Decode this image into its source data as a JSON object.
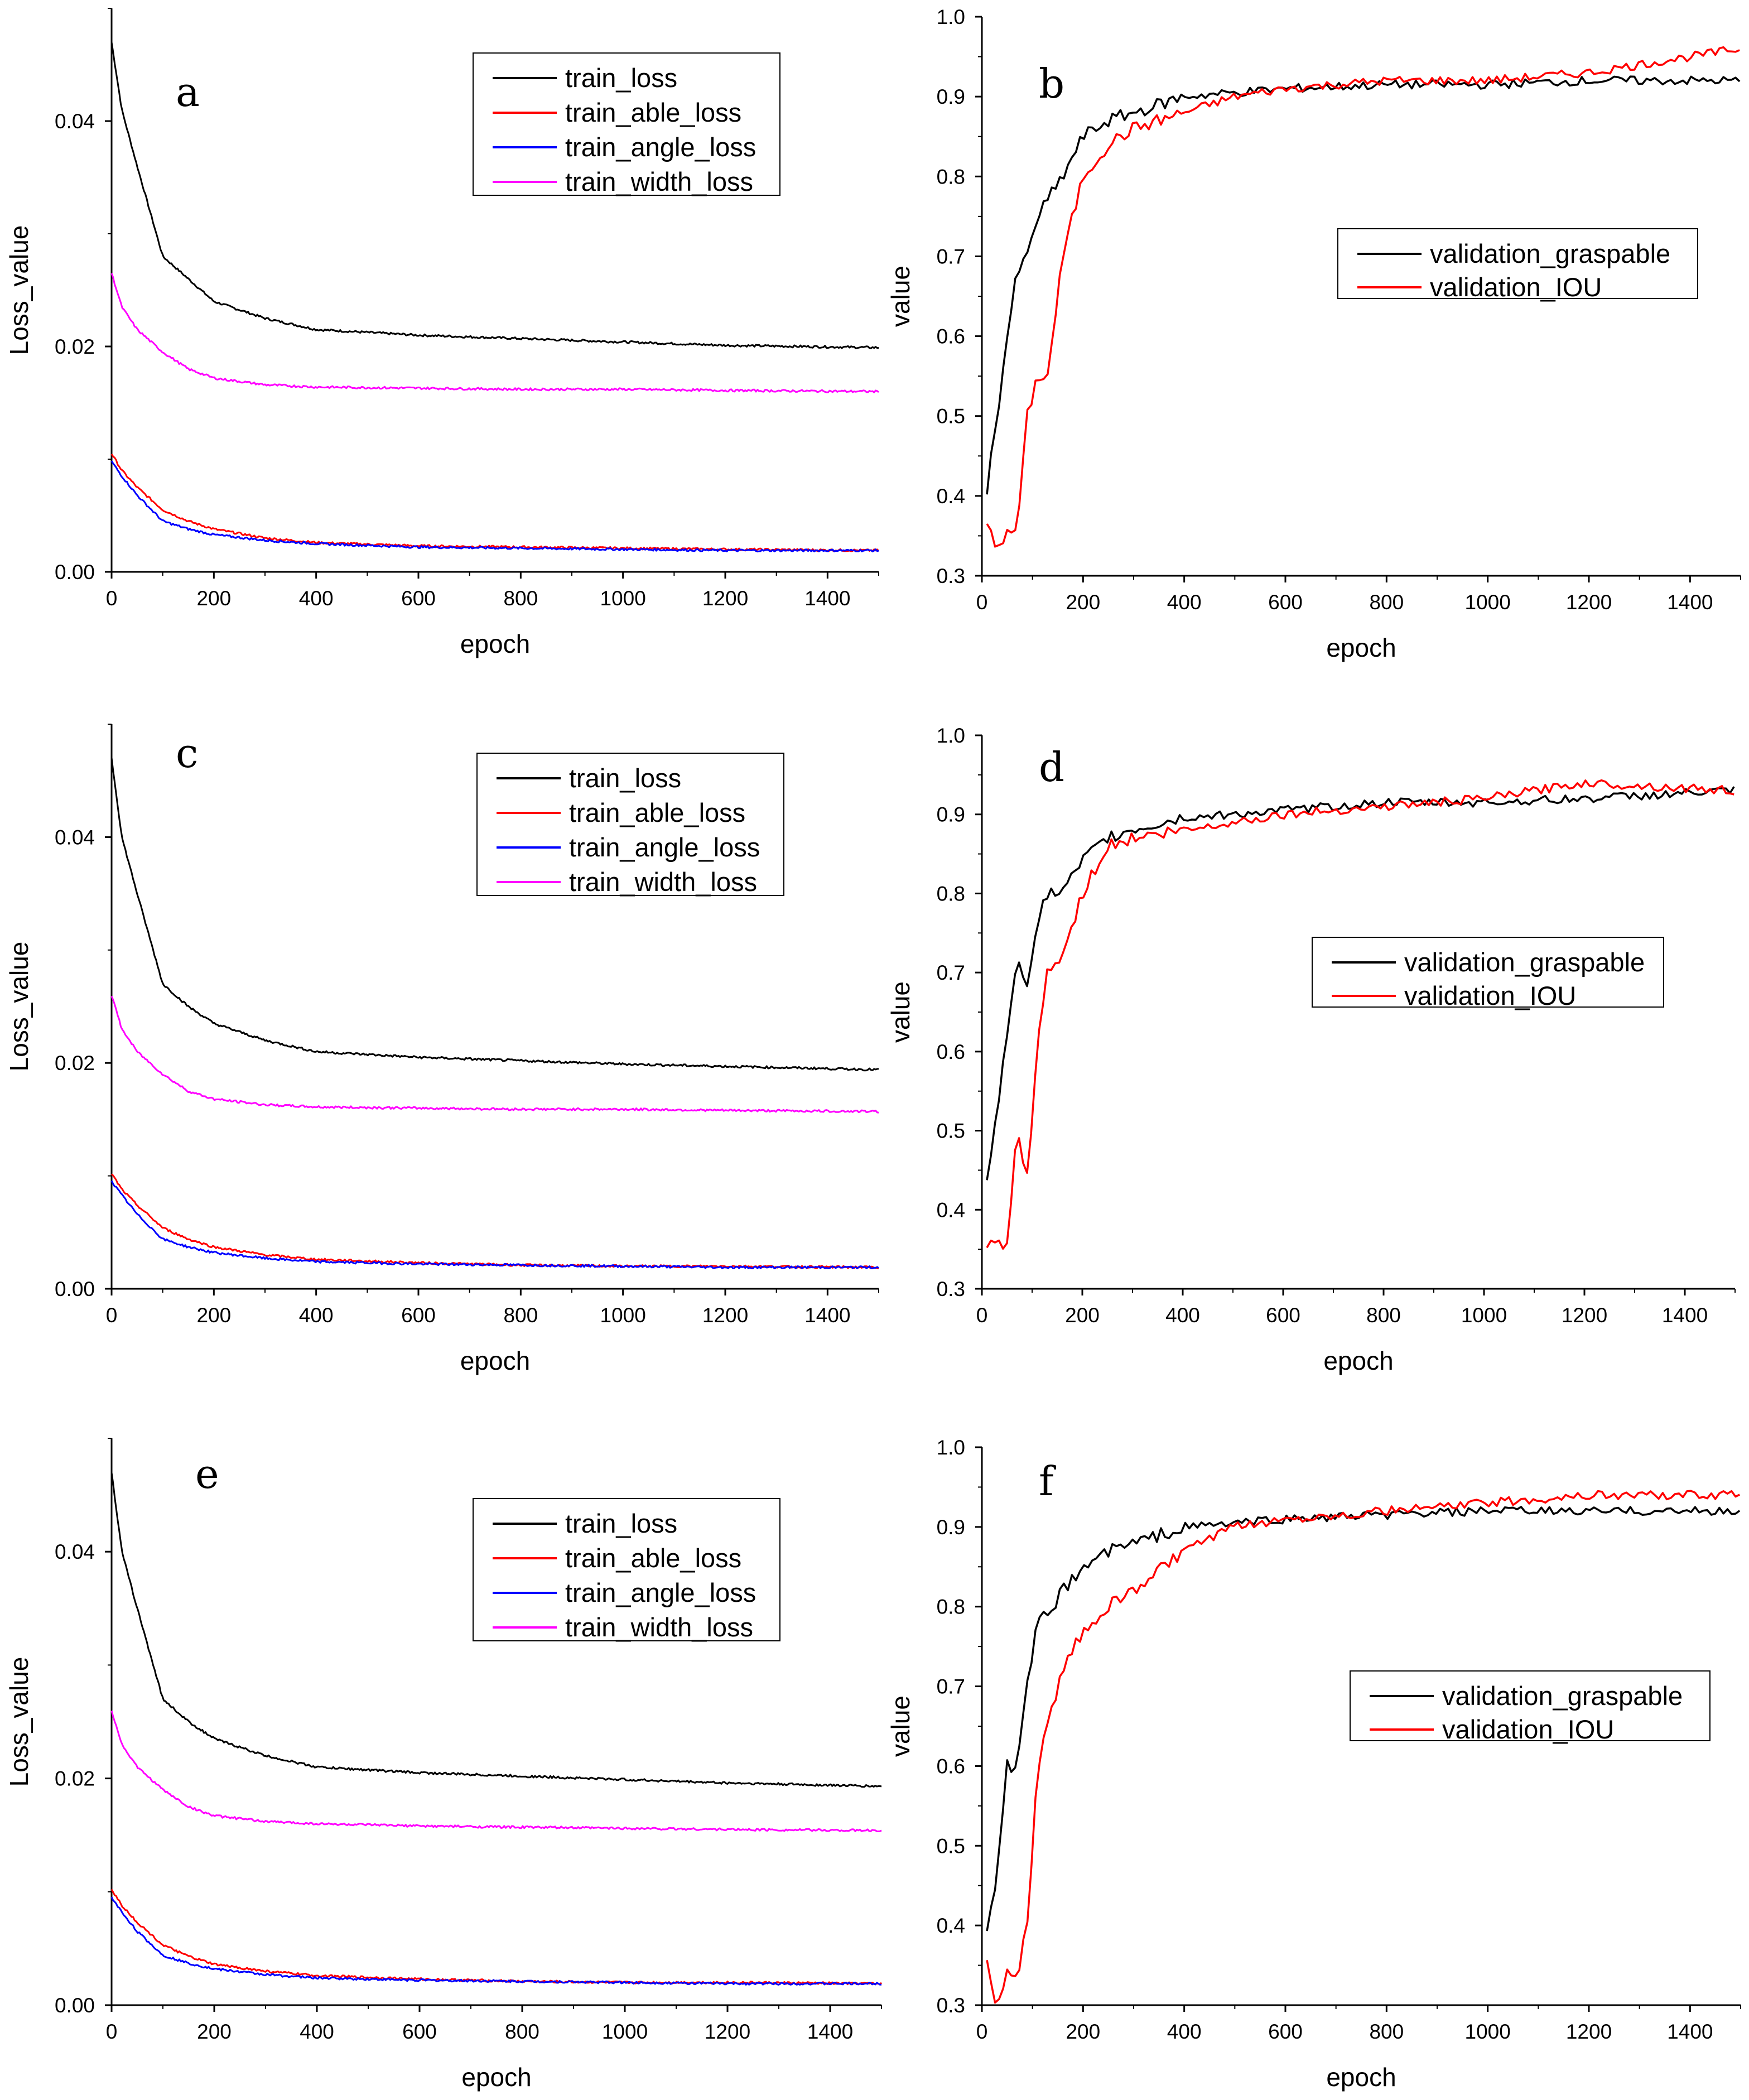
{
  "chart_data": [
    {
      "type": "line",
      "panel_label": "a",
      "xlabel": "epoch",
      "ylabel": "Loss_value",
      "xlim": [
        0,
        1500
      ],
      "ylim": [
        0,
        0.05
      ],
      "xticks": [
        0,
        200,
        400,
        600,
        800,
        1000,
        1200,
        1400
      ],
      "yticks": [
        0.0,
        0.02,
        0.04
      ],
      "ytick_labels": [
        "0.00",
        "0.02",
        "0.04"
      ],
      "legend": [
        "train_loss",
        "train_able_loss",
        "train_angle_loss",
        "train_width_loss"
      ],
      "series": [
        {
          "name": "train_loss",
          "color": "#000000",
          "x": [
            0,
            20,
            50,
            100,
            150,
            200,
            300,
            400,
            600,
            800,
            1000,
            1200,
            1500
          ],
          "values": [
            0.047,
            0.041,
            0.036,
            0.028,
            0.026,
            0.024,
            0.0225,
            0.0215,
            0.021,
            0.0207,
            0.0204,
            0.0201,
            0.0199
          ]
        },
        {
          "name": "train_able_loss",
          "color": "#ff0000",
          "x": [
            0,
            20,
            50,
            100,
            150,
            200,
            300,
            400,
            600,
            800,
            1000,
            1200,
            1500
          ],
          "values": [
            0.0105,
            0.009,
            0.0075,
            0.0055,
            0.0045,
            0.0038,
            0.003,
            0.0026,
            0.0023,
            0.0022,
            0.0021,
            0.002,
            0.0019
          ]
        },
        {
          "name": "train_angle_loss",
          "color": "#0000ff",
          "x": [
            0,
            20,
            50,
            100,
            150,
            200,
            300,
            400,
            600,
            800,
            1000,
            1200,
            1500
          ],
          "values": [
            0.0098,
            0.0085,
            0.0068,
            0.0045,
            0.0038,
            0.0033,
            0.0028,
            0.0025,
            0.0022,
            0.0021,
            0.002,
            0.0019,
            0.0019
          ]
        },
        {
          "name": "train_width_loss",
          "color": "#ff00ff",
          "x": [
            0,
            20,
            50,
            100,
            150,
            200,
            300,
            400,
            600,
            800,
            1000,
            1200,
            1500
          ],
          "values": [
            0.0265,
            0.0235,
            0.0215,
            0.0195,
            0.018,
            0.0172,
            0.0166,
            0.0164,
            0.0163,
            0.0162,
            0.0162,
            0.0161,
            0.016
          ]
        }
      ]
    },
    {
      "type": "line",
      "panel_label": "b",
      "xlabel": "epoch",
      "ylabel": "value",
      "xlim": [
        0,
        1500
      ],
      "ylim": [
        0.3,
        1.0
      ],
      "xticks": [
        0,
        200,
        400,
        600,
        800,
        1000,
        1200,
        1400
      ],
      "yticks": [
        0.3,
        0.4,
        0.5,
        0.6,
        0.7,
        0.8,
        0.9,
        1.0
      ],
      "ytick_labels": [
        "0.3",
        "0.4",
        "0.5",
        "0.6",
        "0.7",
        "0.8",
        "0.9",
        "1.0"
      ],
      "legend": [
        "validation_graspable",
        "validation_IOU"
      ],
      "series": [
        {
          "name": "validation_graspable",
          "color": "#000000",
          "x": [
            10,
            30,
            50,
            70,
            90,
            110,
            130,
            160,
            200,
            250,
            300,
            400,
            500,
            600,
            800,
            1000,
            1200,
            1500
          ],
          "values": [
            0.41,
            0.5,
            0.6,
            0.68,
            0.7,
            0.75,
            0.77,
            0.8,
            0.85,
            0.87,
            0.88,
            0.9,
            0.905,
            0.91,
            0.915,
            0.915,
            0.92,
            0.92
          ]
        },
        {
          "name": "validation_IOU",
          "color": "#ff0000",
          "x": [
            10,
            30,
            50,
            70,
            90,
            110,
            130,
            160,
            200,
            250,
            300,
            400,
            500,
            600,
            800,
            1000,
            1200,
            1500
          ],
          "values": [
            0.36,
            0.34,
            0.35,
            0.36,
            0.5,
            0.55,
            0.55,
            0.7,
            0.8,
            0.84,
            0.86,
            0.88,
            0.9,
            0.91,
            0.92,
            0.92,
            0.93,
            0.96
          ]
        }
      ]
    },
    {
      "type": "line",
      "panel_label": "c",
      "xlabel": "epoch",
      "ylabel": "Loss_value",
      "xlim": [
        0,
        1500
      ],
      "ylim": [
        0,
        0.05
      ],
      "xticks": [
        0,
        200,
        400,
        600,
        800,
        1000,
        1200,
        1400
      ],
      "yticks": [
        0.0,
        0.02,
        0.04
      ],
      "ytick_labels": [
        "0.00",
        "0.02",
        "0.04"
      ],
      "legend": [
        "train_loss",
        "train_able_loss",
        "train_angle_loss",
        "train_width_loss"
      ],
      "series": [
        {
          "name": "train_loss",
          "color": "#000000",
          "x": [
            0,
            20,
            50,
            100,
            150,
            200,
            300,
            400,
            600,
            800,
            1000,
            1200,
            1500
          ],
          "values": [
            0.047,
            0.04,
            0.035,
            0.027,
            0.025,
            0.0235,
            0.022,
            0.021,
            0.0205,
            0.0202,
            0.0199,
            0.0197,
            0.0194
          ]
        },
        {
          "name": "train_able_loss",
          "color": "#ff0000",
          "x": [
            0,
            20,
            50,
            100,
            150,
            200,
            300,
            400,
            600,
            800,
            1000,
            1200,
            1500
          ],
          "values": [
            0.0102,
            0.0088,
            0.0074,
            0.0054,
            0.0044,
            0.0037,
            0.003,
            0.0026,
            0.0023,
            0.0021,
            0.002,
            0.002,
            0.0019
          ]
        },
        {
          "name": "train_angle_loss",
          "color": "#0000ff",
          "x": [
            0,
            20,
            50,
            100,
            150,
            200,
            300,
            400,
            600,
            800,
            1000,
            1200,
            1500
          ],
          "values": [
            0.0095,
            0.0083,
            0.0066,
            0.0044,
            0.0037,
            0.0032,
            0.0027,
            0.0024,
            0.0022,
            0.0021,
            0.002,
            0.0019,
            0.0019
          ]
        },
        {
          "name": "train_width_loss",
          "color": "#ff00ff",
          "x": [
            0,
            20,
            50,
            100,
            150,
            200,
            300,
            400,
            600,
            800,
            1000,
            1200,
            1500
          ],
          "values": [
            0.026,
            0.023,
            0.021,
            0.019,
            0.0175,
            0.0168,
            0.0163,
            0.0161,
            0.016,
            0.0159,
            0.0159,
            0.0158,
            0.0157
          ]
        }
      ]
    },
    {
      "type": "line",
      "panel_label": "d",
      "xlabel": "epoch",
      "ylabel": "value",
      "xlim": [
        0,
        1500
      ],
      "ylim": [
        0.3,
        1.0
      ],
      "xticks": [
        0,
        200,
        400,
        600,
        800,
        1000,
        1200,
        1400
      ],
      "yticks": [
        0.3,
        0.4,
        0.5,
        0.6,
        0.7,
        0.8,
        0.9,
        1.0
      ],
      "ytick_labels": [
        "0.3",
        "0.4",
        "0.5",
        "0.6",
        "0.7",
        "0.8",
        "0.9",
        "1.0"
      ],
      "legend": [
        "validation_graspable",
        "validation_IOU"
      ],
      "series": [
        {
          "name": "validation_graspable",
          "color": "#000000",
          "x": [
            10,
            30,
            50,
            70,
            90,
            110,
            130,
            160,
            200,
            250,
            300,
            400,
            500,
            600,
            800,
            1000,
            1200,
            1500
          ],
          "values": [
            0.44,
            0.52,
            0.62,
            0.72,
            0.69,
            0.76,
            0.8,
            0.8,
            0.84,
            0.87,
            0.88,
            0.895,
            0.9,
            0.905,
            0.915,
            0.915,
            0.92,
            0.93
          ]
        },
        {
          "name": "validation_IOU",
          "color": "#ff0000",
          "x": [
            10,
            30,
            50,
            70,
            90,
            110,
            130,
            160,
            200,
            250,
            300,
            400,
            500,
            600,
            800,
            1000,
            1200,
            1500
          ],
          "values": [
            0.35,
            0.36,
            0.35,
            0.5,
            0.44,
            0.6,
            0.7,
            0.72,
            0.8,
            0.86,
            0.87,
            0.88,
            0.89,
            0.9,
            0.91,
            0.92,
            0.94,
            0.93
          ]
        }
      ]
    },
    {
      "type": "line",
      "panel_label": "e",
      "xlabel": "epoch",
      "ylabel": "Loss_value",
      "xlim": [
        0,
        1500
      ],
      "ylim": [
        0,
        0.05
      ],
      "xticks": [
        0,
        200,
        400,
        600,
        800,
        1000,
        1200,
        1400
      ],
      "yticks": [
        0.0,
        0.02,
        0.04
      ],
      "ytick_labels": [
        "0.00",
        "0.02",
        "0.04"
      ],
      "legend": [
        "train_loss",
        "train_able_loss",
        "train_angle_loss",
        "train_width_loss"
      ],
      "series": [
        {
          "name": "train_loss",
          "color": "#000000",
          "x": [
            0,
            20,
            50,
            100,
            150,
            200,
            300,
            400,
            600,
            800,
            1000,
            1200,
            1500
          ],
          "values": [
            0.047,
            0.04,
            0.035,
            0.027,
            0.025,
            0.0235,
            0.022,
            0.021,
            0.0205,
            0.0202,
            0.0199,
            0.0196,
            0.0193
          ]
        },
        {
          "name": "train_able_loss",
          "color": "#ff0000",
          "x": [
            0,
            20,
            50,
            100,
            150,
            200,
            300,
            400,
            600,
            800,
            1000,
            1200,
            1500
          ],
          "values": [
            0.0102,
            0.0088,
            0.0073,
            0.0053,
            0.0043,
            0.0036,
            0.003,
            0.0026,
            0.0023,
            0.0021,
            0.002,
            0.002,
            0.0019
          ]
        },
        {
          "name": "train_angle_loss",
          "color": "#0000ff",
          "x": [
            0,
            20,
            50,
            100,
            150,
            200,
            300,
            400,
            600,
            800,
            1000,
            1200,
            1500
          ],
          "values": [
            0.0095,
            0.0082,
            0.0065,
            0.0044,
            0.0037,
            0.0032,
            0.0027,
            0.0024,
            0.0022,
            0.0021,
            0.002,
            0.0019,
            0.0019
          ]
        },
        {
          "name": "train_width_loss",
          "color": "#ff00ff",
          "x": [
            0,
            20,
            50,
            100,
            150,
            200,
            300,
            400,
            600,
            800,
            1000,
            1200,
            1500
          ],
          "values": [
            0.026,
            0.023,
            0.021,
            0.019,
            0.0175,
            0.0167,
            0.0162,
            0.016,
            0.0158,
            0.0157,
            0.0156,
            0.0155,
            0.0154
          ]
        }
      ]
    },
    {
      "type": "line",
      "panel_label": "f",
      "xlabel": "epoch",
      "ylabel": "value",
      "xlim": [
        0,
        1500
      ],
      "ylim": [
        0.3,
        1.0
      ],
      "xticks": [
        0,
        200,
        400,
        600,
        800,
        1000,
        1200,
        1400
      ],
      "yticks": [
        0.3,
        0.4,
        0.5,
        0.6,
        0.7,
        0.8,
        0.9,
        1.0
      ],
      "ytick_labels": [
        "0.3",
        "0.4",
        "0.5",
        "0.6",
        "0.7",
        "0.8",
        "0.9",
        "1.0"
      ],
      "legend": [
        "validation_graspable",
        "validation_IOU"
      ],
      "series": [
        {
          "name": "validation_graspable",
          "color": "#000000",
          "x": [
            10,
            30,
            50,
            70,
            90,
            110,
            130,
            160,
            200,
            250,
            300,
            400,
            500,
            600,
            800,
            1000,
            1200,
            1500
          ],
          "values": [
            0.4,
            0.46,
            0.6,
            0.6,
            0.7,
            0.78,
            0.79,
            0.82,
            0.85,
            0.87,
            0.88,
            0.9,
            0.905,
            0.91,
            0.915,
            0.92,
            0.92,
            0.92
          ]
        },
        {
          "name": "validation_IOU",
          "color": "#ff0000",
          "x": [
            10,
            30,
            50,
            70,
            90,
            110,
            130,
            160,
            200,
            250,
            300,
            400,
            500,
            600,
            800,
            1000,
            1200,
            1500
          ],
          "values": [
            0.35,
            0.3,
            0.34,
            0.34,
            0.4,
            0.6,
            0.65,
            0.72,
            0.77,
            0.8,
            0.82,
            0.87,
            0.9,
            0.91,
            0.92,
            0.93,
            0.94,
            0.94
          ]
        }
      ]
    }
  ]
}
